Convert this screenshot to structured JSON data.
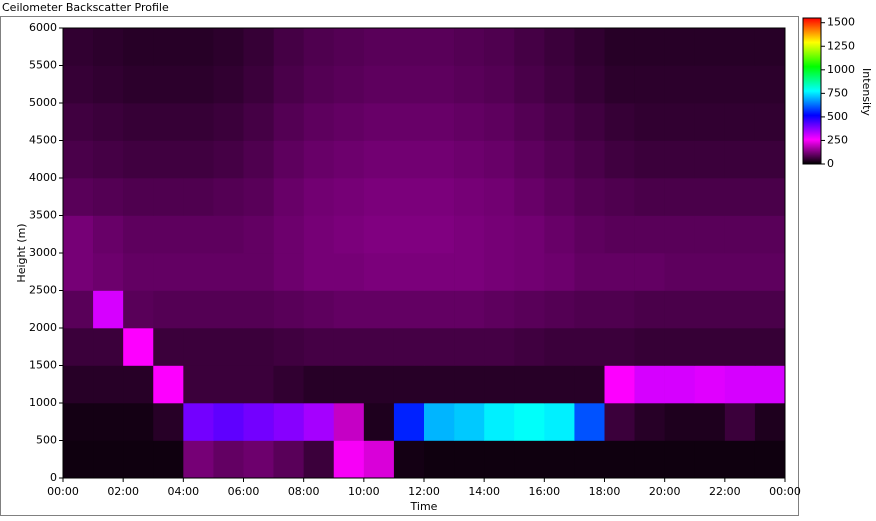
{
  "chart_data": {
    "type": "heatmap",
    "title": "Ceilometer Backscatter Profile",
    "xlabel": "Time",
    "ylabel": "Height (m)",
    "colorbar_label": "Intensity",
    "xlim": [
      0,
      24
    ],
    "xticks": [
      {
        "value": 0,
        "label": "00:00"
      },
      {
        "value": 2,
        "label": "02:00"
      },
      {
        "value": 4,
        "label": "04:00"
      },
      {
        "value": 6,
        "label": "06:00"
      },
      {
        "value": 8,
        "label": "08:00"
      },
      {
        "value": 10,
        "label": "10:00"
      },
      {
        "value": 12,
        "label": "12:00"
      },
      {
        "value": 14,
        "label": "14:00"
      },
      {
        "value": 16,
        "label": "16:00"
      },
      {
        "value": 18,
        "label": "18:00"
      },
      {
        "value": 20,
        "label": "20:00"
      },
      {
        "value": 22,
        "label": "22:00"
      },
      {
        "value": 24,
        "label": "00:00"
      }
    ],
    "ylim": [
      0,
      6000
    ],
    "yticks": [
      0,
      500,
      1000,
      1500,
      2000,
      2500,
      3000,
      3500,
      4000,
      4500,
      5000,
      5500,
      6000
    ],
    "x_bins": [
      0,
      1,
      2,
      3,
      4,
      5,
      6,
      7,
      8,
      9,
      10,
      11,
      12,
      13,
      14,
      15,
      16,
      17,
      18,
      19,
      20,
      21,
      22,
      23,
      24
    ],
    "y_bins": [
      0,
      500,
      1000,
      1500,
      2000,
      2500,
      3000,
      3500,
      4000,
      4500,
      5000,
      5500,
      6000
    ],
    "clim": [
      0,
      1550
    ],
    "cticks": [
      0,
      250,
      500,
      750,
      1000,
      1250,
      1500
    ],
    "colormap": [
      "#000000",
      "#ff00ff",
      "#0000ff",
      "#00ffff",
      "#00ff00",
      "#ffff00",
      "#ff0000"
    ],
    "z": [
      [
        15,
        15,
        15,
        15,
        120,
        100,
        110,
        90,
        60,
        250,
        220,
        20,
        15,
        15,
        15,
        15,
        15,
        15,
        15,
        15,
        15,
        15,
        15,
        15
      ],
      [
        20,
        20,
        20,
        40,
        400,
        420,
        400,
        380,
        350,
        200,
        30,
        550,
        700,
        720,
        760,
        780,
        760,
        600,
        60,
        40,
        30,
        30,
        60,
        30
      ],
      [
        40,
        40,
        40,
        260,
        60,
        60,
        60,
        50,
        40,
        40,
        40,
        40,
        40,
        40,
        40,
        40,
        40,
        40,
        260,
        300,
        300,
        290,
        300,
        300
      ],
      [
        60,
        60,
        260,
        60,
        60,
        60,
        60,
        65,
        70,
        70,
        70,
        70,
        70,
        70,
        70,
        65,
        60,
        60,
        60,
        55,
        55,
        55,
        55,
        55
      ],
      [
        90,
        300,
        90,
        85,
        85,
        85,
        85,
        90,
        95,
        100,
        100,
        100,
        100,
        100,
        95,
        90,
        85,
        80,
        80,
        75,
        75,
        75,
        75,
        75
      ],
      [
        120,
        110,
        100,
        100,
        100,
        100,
        100,
        110,
        120,
        120,
        125,
        125,
        125,
        125,
        120,
        115,
        110,
        100,
        100,
        100,
        95,
        95,
        95,
        95
      ],
      [
        120,
        105,
        95,
        95,
        95,
        95,
        100,
        110,
        120,
        125,
        130,
        130,
        130,
        125,
        120,
        115,
        105,
        95,
        90,
        90,
        90,
        90,
        90,
        90
      ],
      [
        90,
        85,
        80,
        80,
        80,
        85,
        90,
        105,
        115,
        120,
        125,
        125,
        125,
        120,
        115,
        105,
        95,
        85,
        80,
        75,
        75,
        75,
        75,
        75
      ],
      [
        75,
        70,
        65,
        65,
        65,
        70,
        80,
        95,
        105,
        110,
        115,
        115,
        115,
        110,
        105,
        95,
        85,
        75,
        65,
        60,
        60,
        60,
        60,
        60
      ],
      [
        65,
        60,
        55,
        55,
        55,
        60,
        70,
        85,
        95,
        100,
        105,
        105,
        105,
        100,
        95,
        85,
        75,
        65,
        55,
        50,
        50,
        50,
        50,
        50
      ],
      [
        55,
        50,
        45,
        45,
        45,
        50,
        60,
        75,
        85,
        90,
        95,
        95,
        95,
        90,
        85,
        75,
        65,
        55,
        45,
        45,
        45,
        45,
        45,
        45
      ],
      [
        50,
        45,
        40,
        40,
        40,
        45,
        55,
        70,
        80,
        85,
        90,
        90,
        90,
        85,
        80,
        70,
        60,
        50,
        40,
        40,
        40,
        40,
        40,
        40
      ]
    ]
  }
}
